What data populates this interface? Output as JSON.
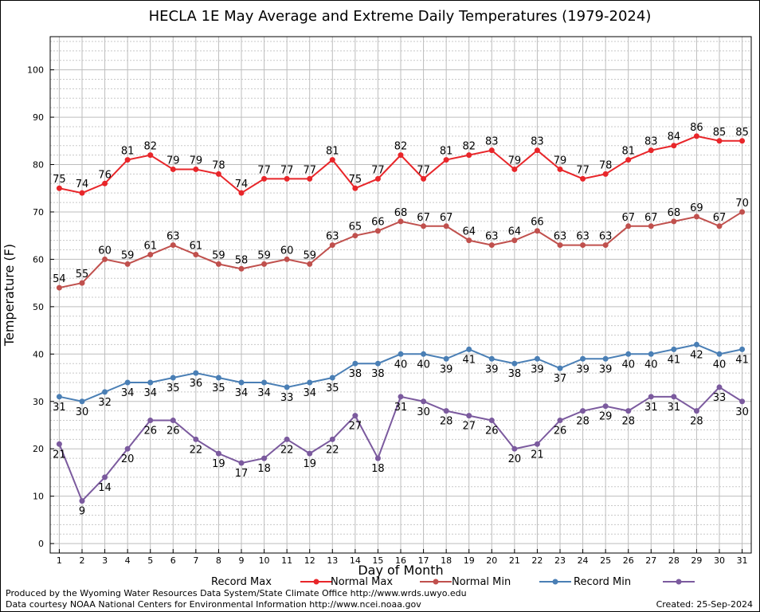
{
  "chart_data": {
    "type": "line",
    "title": "HECLA 1E May Average and Extreme Daily Temperatures (1979-2024)",
    "xlabel": "Day of Month",
    "ylabel": "Temperature (F)",
    "x": [
      1,
      2,
      3,
      4,
      5,
      6,
      7,
      8,
      9,
      10,
      11,
      12,
      13,
      14,
      15,
      16,
      17,
      18,
      19,
      20,
      21,
      22,
      23,
      24,
      25,
      26,
      27,
      28,
      29,
      30,
      31
    ],
    "xlim": [
      0.6,
      31.4
    ],
    "ylim": [
      -2,
      107
    ],
    "yticks": [
      0,
      10,
      20,
      30,
      40,
      50,
      60,
      70,
      80,
      90,
      100
    ],
    "grid": true,
    "legend_position": "bottom",
    "series": [
      {
        "name": "Record Max",
        "color": "#e8262a",
        "label_position": "above",
        "values": [
          75,
          74,
          76,
          81,
          82,
          79,
          79,
          78,
          74,
          77,
          77,
          77,
          81,
          75,
          77,
          82,
          77,
          81,
          82,
          83,
          79,
          83,
          79,
          77,
          78,
          81,
          83,
          84,
          86,
          85,
          85
        ]
      },
      {
        "name": "Normal Max",
        "color": "#c0504d",
        "label_position": "above",
        "values": [
          54,
          55,
          60,
          59,
          61,
          63,
          61,
          59,
          58,
          59,
          60,
          59,
          63,
          65,
          66,
          68,
          67,
          67,
          64,
          63,
          64,
          66,
          63,
          63,
          63,
          67,
          67,
          68,
          69,
          67,
          70
        ]
      },
      {
        "name": "Normal Min",
        "color": "#4a7fb5",
        "label_position": "below",
        "values": [
          31,
          30,
          32,
          34,
          34,
          35,
          36,
          35,
          34,
          34,
          33,
          34,
          35,
          38,
          38,
          40,
          40,
          39,
          41,
          39,
          38,
          39,
          37,
          39,
          39,
          40,
          40,
          41,
          42,
          40,
          41
        ]
      },
      {
        "name": "Record Min",
        "color": "#7b5a9e",
        "label_position": "below",
        "values": [
          21,
          9,
          14,
          20,
          26,
          26,
          22,
          19,
          17,
          18,
          22,
          19,
          22,
          27,
          18,
          31,
          30,
          28,
          27,
          26,
          20,
          21,
          26,
          28,
          29,
          28,
          31,
          31,
          28,
          33,
          30
        ]
      }
    ]
  },
  "footer": {
    "produced_by": "Produced by the Wyoming Water Resources Data System/State Climate Office http://www.wrds.uwyo.edu",
    "courtesy": "Data courtesy NOAA National Centers for Environmental Information http://www.ncei.noaa.gov",
    "created": "Created:  25-Sep-2024"
  }
}
